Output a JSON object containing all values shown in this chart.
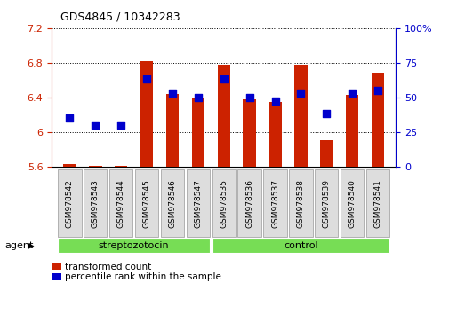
{
  "title": "GDS4845 / 10342283",
  "samples": [
    "GSM978542",
    "GSM978543",
    "GSM978544",
    "GSM978545",
    "GSM978546",
    "GSM978547",
    "GSM978535",
    "GSM978536",
    "GSM978537",
    "GSM978538",
    "GSM978539",
    "GSM978540",
    "GSM978541"
  ],
  "bar_values": [
    5.63,
    5.61,
    5.61,
    6.82,
    6.44,
    6.4,
    6.78,
    6.38,
    6.35,
    6.78,
    5.9,
    6.43,
    6.69
  ],
  "bar_base": 5.6,
  "percentile_ranks": [
    35,
    30,
    30,
    63,
    53,
    50,
    63,
    50,
    47,
    53,
    38,
    53,
    55
  ],
  "ylim_left": [
    5.6,
    7.2
  ],
  "ylim_right": [
    0,
    100
  ],
  "yticks_left": [
    5.6,
    6.0,
    6.4,
    6.8,
    7.2
  ],
  "yticks_right": [
    0,
    25,
    50,
    75,
    100
  ],
  "bar_color": "#cc2200",
  "dot_color": "#0000cc",
  "group_color": "#77dd55",
  "title_color": "#000000",
  "left_axis_color": "#cc2200",
  "right_axis_color": "#0000cc",
  "legend_red_label": "transformed count",
  "legend_blue_label": "percentile rank within the sample",
  "agent_label": "agent",
  "group_names": [
    "streptozotocin",
    "control"
  ],
  "strep_indices": [
    0,
    5
  ],
  "ctrl_indices": [
    6,
    12
  ],
  "bar_width": 0.5,
  "dot_size": 30,
  "background_color": "#ffffff"
}
